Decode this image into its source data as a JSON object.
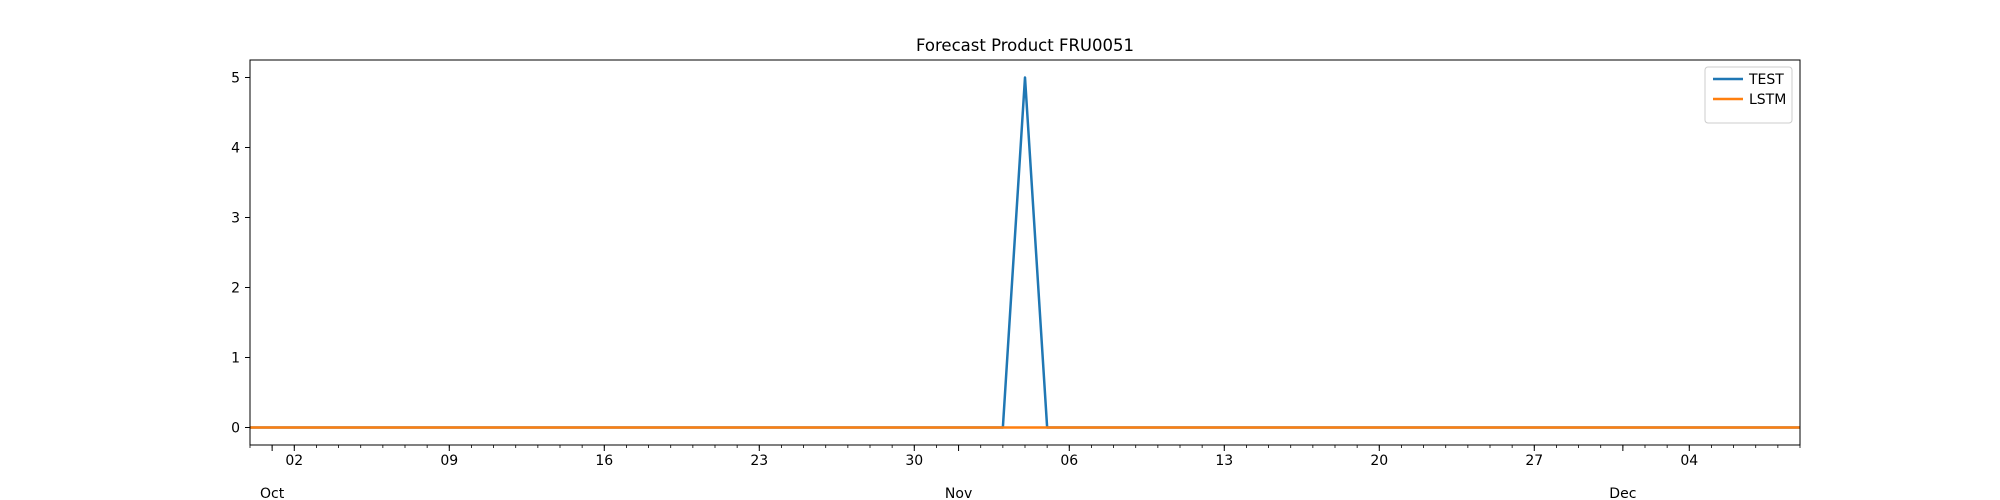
{
  "chart_data": {
    "type": "line",
    "title": "Forecast Product FRU0051",
    "xlabel": "",
    "ylabel": "",
    "x_start": "2023-09-30",
    "x_end": "2023-12-09",
    "ylim": [
      -0.25,
      5.25
    ],
    "yticks": [
      0,
      1,
      2,
      3,
      4,
      5
    ],
    "major_ticks": [
      {
        "date": "2023-10-02",
        "label": "02"
      },
      {
        "date": "2023-10-09",
        "label": "09"
      },
      {
        "date": "2023-10-16",
        "label": "16"
      },
      {
        "date": "2023-10-23",
        "label": "23"
      },
      {
        "date": "2023-10-30",
        "label": "30"
      },
      {
        "date": "2023-11-06",
        "label": "06"
      },
      {
        "date": "2023-11-13",
        "label": "13"
      },
      {
        "date": "2023-11-20",
        "label": "20"
      },
      {
        "date": "2023-11-27",
        "label": "27"
      },
      {
        "date": "2023-12-04",
        "label": "04"
      }
    ],
    "month_ticks": [
      {
        "date": "2023-10-01",
        "label": "Oct"
      },
      {
        "date": "2023-11-01",
        "label": "Nov"
      },
      {
        "date": "2023-12-01",
        "label": "Dec"
      }
    ],
    "grid": false,
    "legend": "top-right",
    "series": [
      {
        "name": "TEST",
        "color": "#1f77b4",
        "points": [
          {
            "x": "2023-09-30",
            "y": 0
          },
          {
            "x": "2023-11-03",
            "y": 0
          },
          {
            "x": "2023-11-04",
            "y": 5
          },
          {
            "x": "2023-11-05",
            "y": 0
          },
          {
            "x": "2023-12-09",
            "y": 0
          }
        ]
      },
      {
        "name": "LSTM",
        "color": "#ff7f0e",
        "points": [
          {
            "x": "2023-09-30",
            "y": 0
          },
          {
            "x": "2023-12-09",
            "y": 0
          }
        ]
      }
    ]
  }
}
